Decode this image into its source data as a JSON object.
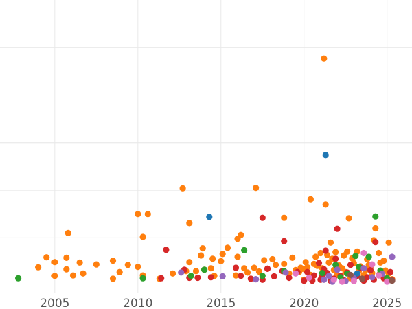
{
  "chart_data": {
    "type": "scatter",
    "title": "",
    "xlabel": "",
    "ylabel": "",
    "xlim": [
      2001.7,
      2026.5
    ],
    "ylim": [
      -0.15,
      6.0
    ],
    "x_ticks": [
      2005,
      2010,
      2015,
      2020,
      2025
    ],
    "x_tick_labels": [
      "2005",
      "2010",
      "2015",
      "2020",
      "2025"
    ],
    "y_ticks": [
      1,
      2,
      3,
      4,
      5
    ],
    "y_tick_labels": [],
    "grid": true,
    "legend": "none",
    "colors": {
      "orange": "#ff7f0e",
      "red": "#d62728",
      "blue": "#1f77b4",
      "green": "#2ca02c",
      "purple": "#9467bd",
      "pink": "#e377c2",
      "brown": "#8c564b"
    },
    "series": [
      {
        "color": "orange",
        "points": [
          [
            2004.0,
            0.38
          ],
          [
            2004.5,
            0.59
          ],
          [
            2005.0,
            0.49
          ],
          [
            2005.0,
            0.2
          ],
          [
            2005.7,
            0.58
          ],
          [
            2005.7,
            0.34
          ],
          [
            2005.8,
            1.1
          ],
          [
            2006.1,
            0.21
          ],
          [
            2006.5,
            0.48
          ],
          [
            2006.7,
            0.25
          ],
          [
            2007.5,
            0.44
          ],
          [
            2008.5,
            0.52
          ],
          [
            2008.5,
            0.14
          ],
          [
            2008.9,
            0.28
          ],
          [
            2009.4,
            0.43
          ],
          [
            2010.0,
            0.39
          ],
          [
            2010.0,
            1.5
          ],
          [
            2010.3,
            1.02
          ],
          [
            2010.3,
            0.21
          ],
          [
            2010.6,
            1.5
          ],
          [
            2011.3,
            0.14
          ],
          [
            2012.1,
            0.25
          ],
          [
            2012.7,
            2.04
          ],
          [
            2012.9,
            0.3
          ],
          [
            2013.1,
            1.31
          ],
          [
            2013.1,
            0.49
          ],
          [
            2013.5,
            0.3
          ],
          [
            2013.8,
            0.63
          ],
          [
            2013.9,
            0.78
          ],
          [
            2014.0,
            0.33
          ],
          [
            2014.4,
            0.36
          ],
          [
            2014.5,
            0.56
          ],
          [
            2014.6,
            0.2
          ],
          [
            2015.0,
            0.51
          ],
          [
            2015.1,
            0.66
          ],
          [
            2015.4,
            0.79
          ],
          [
            2015.9,
            0.21
          ],
          [
            2016.0,
            0.6
          ],
          [
            2016.0,
            0.98
          ],
          [
            2016.2,
            1.06
          ],
          [
            2016.4,
            0.36
          ],
          [
            2016.6,
            0.27
          ],
          [
            2017.0,
            0.37
          ],
          [
            2017.1,
            2.05
          ],
          [
            2017.3,
            0.29
          ],
          [
            2017.6,
            0.53
          ],
          [
            2017.8,
            0.35
          ],
          [
            2018.1,
            0.55
          ],
          [
            2018.3,
            0.43
          ],
          [
            2018.8,
            0.45
          ],
          [
            2018.8,
            1.42
          ],
          [
            2019.1,
            0.25
          ],
          [
            2019.3,
            0.58
          ],
          [
            2019.5,
            0.32
          ],
          [
            2019.7,
            0.28
          ],
          [
            2019.8,
            0.37
          ],
          [
            2019.9,
            0.35
          ],
          [
            2020.0,
            0.12
          ],
          [
            2020.1,
            0.32
          ],
          [
            2020.1,
            0.49
          ],
          [
            2020.2,
            0.38
          ],
          [
            2020.4,
            0.22
          ],
          [
            2020.4,
            1.81
          ],
          [
            2020.6,
            0.45
          ],
          [
            2020.7,
            0.6
          ],
          [
            2020.8,
            0.41
          ],
          [
            2021.0,
            0.68
          ],
          [
            2021.1,
            0.36
          ],
          [
            2021.2,
            4.77
          ],
          [
            2021.3,
            0.27
          ],
          [
            2021.3,
            1.7
          ],
          [
            2021.4,
            0.64
          ],
          [
            2021.5,
            0.48
          ],
          [
            2021.6,
            0.9
          ],
          [
            2021.7,
            0.56
          ],
          [
            2021.8,
            0.32
          ],
          [
            2021.9,
            0.7
          ],
          [
            2022.0,
            0.22
          ],
          [
            2022.1,
            0.42
          ],
          [
            2022.3,
            0.36
          ],
          [
            2022.4,
            0.63
          ],
          [
            2022.5,
            0.28
          ],
          [
            2022.6,
            0.71
          ],
          [
            2022.7,
            1.41
          ],
          [
            2022.8,
            0.15
          ],
          [
            2022.9,
            0.57
          ],
          [
            2023.0,
            0.47
          ],
          [
            2023.2,
            0.71
          ],
          [
            2023.3,
            0.3
          ],
          [
            2023.4,
            0.4
          ],
          [
            2023.6,
            0.22
          ],
          [
            2023.7,
            0.32
          ],
          [
            2023.8,
            0.55
          ],
          [
            2023.9,
            0.43
          ],
          [
            2024.0,
            0.38
          ],
          [
            2024.1,
            0.26
          ],
          [
            2024.2,
            0.95
          ],
          [
            2024.3,
            1.2
          ],
          [
            2024.5,
            0.68
          ],
          [
            2024.6,
            0.48
          ],
          [
            2024.8,
            0.52
          ],
          [
            2024.9,
            0.31
          ],
          [
            2025.1,
            0.9
          ],
          [
            2025.1,
            0.25
          ],
          [
            2025.3,
            0.13
          ]
        ]
      },
      {
        "color": "red",
        "points": [
          [
            2011.4,
            0.15
          ],
          [
            2011.7,
            0.75
          ],
          [
            2012.8,
            0.33
          ],
          [
            2013.1,
            0.16
          ],
          [
            2013.6,
            0.16
          ],
          [
            2014.4,
            0.17
          ],
          [
            2015.9,
            0.37
          ],
          [
            2016.2,
            0.2
          ],
          [
            2016.8,
            0.14
          ],
          [
            2017.5,
            1.42
          ],
          [
            2017.5,
            0.12
          ],
          [
            2017.8,
            0.35
          ],
          [
            2018.2,
            0.19
          ],
          [
            2018.7,
            0.3
          ],
          [
            2018.8,
            0.93
          ],
          [
            2019.1,
            0.16
          ],
          [
            2019.6,
            0.28
          ],
          [
            2020.0,
            0.1
          ],
          [
            2020.2,
            0.28
          ],
          [
            2020.5,
            0.1
          ],
          [
            2020.6,
            0.21
          ],
          [
            2020.9,
            0.47
          ],
          [
            2021.0,
            0.12
          ],
          [
            2021.1,
            0.2
          ],
          [
            2021.2,
            0.34
          ],
          [
            2021.3,
            0.73
          ],
          [
            2021.4,
            0.26
          ],
          [
            2021.6,
            0.1
          ],
          [
            2021.8,
            0.14
          ],
          [
            2021.9,
            0.56
          ],
          [
            2022.0,
            1.19
          ],
          [
            2022.2,
            0.2
          ],
          [
            2022.4,
            0.11
          ],
          [
            2022.6,
            0.27
          ],
          [
            2022.8,
            0.43
          ],
          [
            2023.0,
            0.13
          ],
          [
            2023.2,
            0.2
          ],
          [
            2023.4,
            0.37
          ],
          [
            2023.6,
            0.1
          ],
          [
            2023.8,
            0.17
          ],
          [
            2024.0,
            0.32
          ],
          [
            2024.2,
            0.12
          ],
          [
            2024.3,
            0.91
          ],
          [
            2024.5,
            0.22
          ],
          [
            2024.8,
            0.15
          ],
          [
            2025.2,
            0.28
          ],
          [
            2025.3,
            0.11
          ]
        ]
      },
      {
        "color": "blue",
        "points": [
          [
            2014.3,
            1.44
          ],
          [
            2021.3,
            2.74
          ],
          [
            2023.2,
            0.25
          ]
        ]
      },
      {
        "color": "green",
        "points": [
          [
            2002.8,
            0.15
          ],
          [
            2010.3,
            0.15
          ],
          [
            2013.2,
            0.2
          ],
          [
            2014.0,
            0.33
          ],
          [
            2016.4,
            0.74
          ],
          [
            2017.5,
            0.2
          ],
          [
            2018.8,
            0.3
          ],
          [
            2021.1,
            0.26
          ],
          [
            2021.9,
            0.43
          ],
          [
            2022.2,
            0.17
          ],
          [
            2022.6,
            0.25
          ],
          [
            2023.1,
            0.62
          ],
          [
            2023.3,
            0.39
          ],
          [
            2023.9,
            0.6
          ],
          [
            2024.3,
            1.45
          ],
          [
            2024.6,
            0.31
          ],
          [
            2025.0,
            0.15
          ]
        ]
      },
      {
        "color": "purple",
        "points": [
          [
            2012.6,
            0.27
          ],
          [
            2015.1,
            0.19
          ],
          [
            2017.1,
            0.13
          ],
          [
            2018.9,
            0.27
          ],
          [
            2021.2,
            0.12
          ],
          [
            2021.5,
            0.2
          ],
          [
            2021.7,
            0.08
          ],
          [
            2022.0,
            0.33
          ],
          [
            2022.5,
            0.09
          ],
          [
            2023.0,
            0.15
          ],
          [
            2023.6,
            0.36
          ],
          [
            2024.1,
            0.17
          ],
          [
            2024.7,
            0.24
          ],
          [
            2025.3,
            0.6
          ]
        ]
      },
      {
        "color": "pink",
        "points": [
          [
            2019.5,
            0.25
          ],
          [
            2020.3,
            0.16
          ],
          [
            2021.8,
            0.12
          ],
          [
            2022.3,
            0.08
          ],
          [
            2023.0,
            0.09
          ],
          [
            2023.6,
            0.68
          ],
          [
            2024.1,
            0.44
          ],
          [
            2024.5,
            0.21
          ],
          [
            2025.0,
            0.08
          ]
        ]
      },
      {
        "color": "brown",
        "points": [
          [
            2022.8,
            0.22
          ],
          [
            2023.5,
            0.14
          ],
          [
            2025.3,
            0.1
          ]
        ]
      }
    ]
  }
}
